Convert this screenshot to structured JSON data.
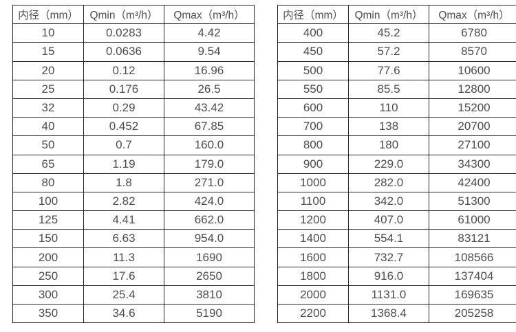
{
  "colors": {
    "background": "#ffffff",
    "border": "#262626",
    "text": "#4d4d4d"
  },
  "left_table": {
    "headers": [
      "内径（mm）",
      "Qmin（m³/h）",
      "Qmax（m³/h）"
    ],
    "rows": [
      [
        "10",
        "0.0283",
        "4.42"
      ],
      [
        "15",
        "0.0636",
        "9.54"
      ],
      [
        "20",
        "0.12",
        "16.96"
      ],
      [
        "25",
        "0.176",
        "26.5"
      ],
      [
        "32",
        "0.29",
        "43.42"
      ],
      [
        "40",
        "0.452",
        "67.85"
      ],
      [
        "50",
        "0.7",
        "160.0"
      ],
      [
        "65",
        "1.19",
        "179.0"
      ],
      [
        "80",
        "1.8",
        "271.0"
      ],
      [
        "100",
        "2.82",
        "424.0"
      ],
      [
        "125",
        "4.41",
        "662.0"
      ],
      [
        "150",
        "6.63",
        "954.0"
      ],
      [
        "200",
        "11.3",
        "1690"
      ],
      [
        "250",
        "17.6",
        "2650"
      ],
      [
        "300",
        "25.4",
        "3810"
      ],
      [
        "350",
        "34.6",
        "5190"
      ]
    ]
  },
  "right_table": {
    "headers": [
      "内径（mm）",
      "Qmin（m³/h）",
      "Qmax（m³/h）"
    ],
    "rows": [
      [
        "400",
        "45.2",
        "6780"
      ],
      [
        "450",
        "57.2",
        "8570"
      ],
      [
        "500",
        "77.6",
        "10600"
      ],
      [
        "550",
        "85.5",
        "12800"
      ],
      [
        "600",
        "110",
        "15200"
      ],
      [
        "700",
        "138",
        "20700"
      ],
      [
        "800",
        "180",
        "27100"
      ],
      [
        "900",
        "229.0",
        "34300"
      ],
      [
        "1000",
        "282.0",
        "42400"
      ],
      [
        "1100",
        "342.0",
        "51300"
      ],
      [
        "1200",
        "407.0",
        "61000"
      ],
      [
        "1400",
        "554.1",
        "83121"
      ],
      [
        "1600",
        "732.7",
        "108566"
      ],
      [
        "1800",
        "916.0",
        "137404"
      ],
      [
        "2000",
        "1131.0",
        "169635"
      ],
      [
        "2200",
        "1368.4",
        "205258"
      ]
    ]
  }
}
